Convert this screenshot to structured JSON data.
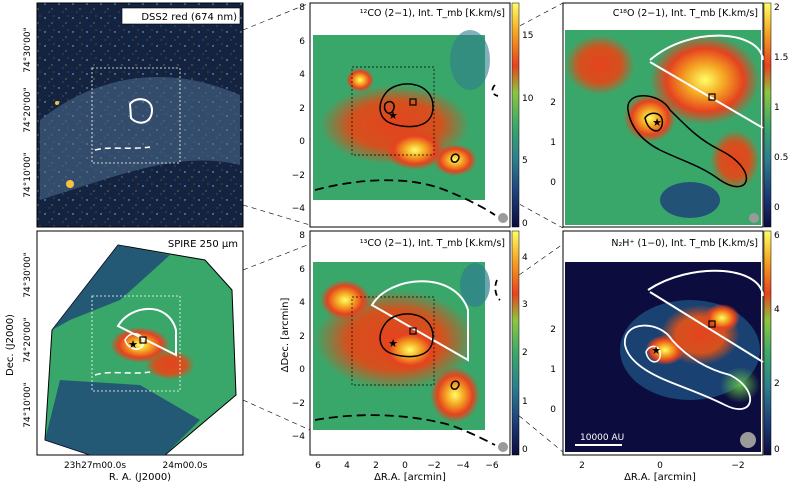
{
  "panels": [
    {
      "id": "dss2",
      "label": "DSS2 red (674 nm)",
      "y_tick_labels": [
        "74°30'00\"",
        "74°20'00\"",
        "74°10'00\""
      ],
      "x_tick_labels": [],
      "x_axis_label": "",
      "y_axis_label": "",
      "colorbar": null
    },
    {
      "id": "co12",
      "label": "¹²CO (2−1),  Int. T_mb [K.km/s]",
      "y_tick_labels": [
        "8",
        "6",
        "4",
        "2",
        "0",
        "−2",
        "−4"
      ],
      "x_tick_labels": [],
      "x_axis_label": "",
      "y_axis_label": "",
      "colorbar": {
        "ticks": [
          "15",
          "10",
          "5",
          "0"
        ],
        "max": 18
      }
    },
    {
      "id": "c18o",
      "label": "C¹⁸O (2−1),  Int. T_mb [K.km/s]",
      "y_tick_labels": [
        "2",
        "1",
        "0"
      ],
      "x_tick_labels": [],
      "x_axis_label": "",
      "y_axis_label": "",
      "colorbar": {
        "ticks": [
          "2",
          "1.5",
          "1",
          "0.5",
          "0"
        ],
        "max": 2
      }
    },
    {
      "id": "spire",
      "label": "SPIRE 250 μm",
      "y_tick_labels": [
        "74°30'00\"",
        "74°20'00\"",
        "74°10'00\""
      ],
      "x_tick_labels": [
        "23h27m00.0s",
        "24m00.0s"
      ],
      "x_axis_label": "R. A. (J2000)",
      "y_axis_label": "Dec. (J2000)",
      "colorbar": null
    },
    {
      "id": "co13",
      "label": "¹³CO (2−1),  Int. T_mb [K.km/s]",
      "y_tick_labels": [
        "8",
        "6",
        "4",
        "2",
        "0",
        "−2",
        "−4"
      ],
      "x_tick_labels": [
        "6",
        "4",
        "2",
        "0",
        "−2",
        "−4",
        "−6"
      ],
      "x_axis_label": "ΔR.A. [arcmin]",
      "y_axis_label": "ΔDec. [arcmin]",
      "colorbar": {
        "ticks": [
          "4",
          "3",
          "2",
          "1",
          "0"
        ],
        "max": 4.5
      }
    },
    {
      "id": "n2hp",
      "label": "N₂H⁺ (1−0),  Int. T_mb [K.km/s]",
      "y_tick_labels": [
        "2",
        "1",
        "0"
      ],
      "x_tick_labels": [
        "2",
        "0",
        "−2"
      ],
      "x_axis_label": "ΔR.A. [arcmin]",
      "y_axis_label": "",
      "colorbar": {
        "ticks": [
          "6",
          "4",
          "2",
          "0"
        ],
        "max": 6
      },
      "scalebar": "10000 AU"
    }
  ],
  "colors": {
    "colormap": [
      "#0c0c3e",
      "#1d3f7a",
      "#2e7d8e",
      "#3aa76a",
      "#8cc63f",
      "#d9c92b",
      "#e5431f",
      "#f5a623",
      "#ffff66"
    ],
    "contour_black": "#000000",
    "contour_white": "#ffffff",
    "beam": "#9a9a9a"
  },
  "icons": [
    "star-marker",
    "square-marker",
    "beam-circle"
  ]
}
